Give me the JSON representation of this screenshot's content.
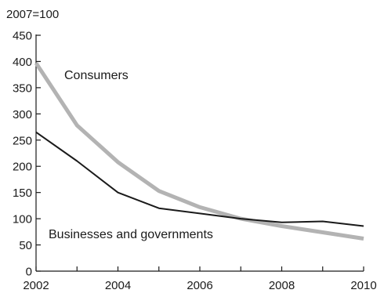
{
  "chart_data": {
    "type": "line",
    "ylabel": "2007=100",
    "x": [
      2002,
      2003,
      2004,
      2005,
      2006,
      2007,
      2008,
      2009,
      2010
    ],
    "xticks": [
      2002,
      2004,
      2006,
      2008,
      2010
    ],
    "yticks": [
      0,
      50,
      100,
      150,
      200,
      250,
      300,
      350,
      400,
      450
    ],
    "xlim": [
      2002,
      2010
    ],
    "ylim": [
      0,
      450
    ],
    "grid": false,
    "series": [
      {
        "name": "Consumers",
        "color": "#b3b3b3",
        "values": [
          397,
          278,
          208,
          153,
          122,
          100,
          86,
          74,
          62
        ]
      },
      {
        "name": "Businesses and governments",
        "color": "#1a1a1a",
        "values": [
          265,
          210,
          150,
          120,
          110,
          100,
          93,
          95,
          86
        ]
      }
    ]
  }
}
